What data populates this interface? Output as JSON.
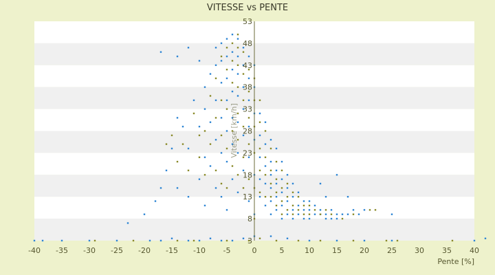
{
  "chart_data": {
    "type": "scatter",
    "title": "VITESSE vs PENTE",
    "xlabel": "Pente [%]",
    "ylabel": "Vitesse [km/h]",
    "xlim": [
      -40,
      40
    ],
    "ylim": [
      3,
      53
    ],
    "x_ticks": [
      "-40",
      "-35",
      "-30",
      "-25",
      "-20",
      "-15",
      "-10",
      "-5",
      "0",
      "5",
      "10",
      "15",
      "20",
      "25",
      "30",
      "35",
      "40"
    ],
    "y_ticks": [
      "53",
      "48",
      "43",
      "38",
      "33",
      "28",
      "23",
      "18",
      "13",
      "8",
      "3"
    ],
    "grid": "horizontal-bands",
    "legend": "none",
    "colors": {
      "series_blue": "#2f86d4",
      "series_olive": "#8a8a2a",
      "band_light": "#ffffff",
      "band_dark": "#f0f0f0",
      "axis": "#6b6b3a"
    },
    "series": [
      {
        "color": "series_blue",
        "points": [
          [
            -40,
            3
          ],
          [
            -38.5,
            3
          ],
          [
            -35,
            3
          ],
          [
            -30,
            3
          ],
          [
            -25,
            3
          ],
          [
            -19,
            3
          ],
          [
            -17,
            3
          ],
          [
            -15,
            3.5
          ],
          [
            -12,
            3
          ],
          [
            -10,
            3
          ],
          [
            -8,
            3.5
          ],
          [
            -6,
            3
          ],
          [
            -4,
            3
          ],
          [
            -2,
            3.5
          ],
          [
            0,
            4
          ],
          [
            3,
            4
          ],
          [
            6,
            3.5
          ],
          [
            10,
            3
          ],
          [
            15,
            3
          ],
          [
            20,
            3
          ],
          [
            25,
            3
          ],
          [
            40,
            3
          ],
          [
            42,
            3.5
          ],
          [
            -23,
            7
          ],
          [
            -20,
            9
          ],
          [
            -18,
            12
          ],
          [
            -17,
            15
          ],
          [
            -16,
            19
          ],
          [
            -15,
            24
          ],
          [
            -14,
            31
          ],
          [
            -14,
            15
          ],
          [
            -13,
            29
          ],
          [
            -12,
            24
          ],
          [
            -12,
            13
          ],
          [
            -11,
            35
          ],
          [
            -10,
            29
          ],
          [
            -10,
            17
          ],
          [
            -9,
            33
          ],
          [
            -9,
            22
          ],
          [
            -9,
            11
          ],
          [
            -17,
            46
          ],
          [
            -14,
            45
          ],
          [
            -12,
            47
          ],
          [
            -10,
            44
          ],
          [
            -9,
            38
          ],
          [
            -8,
            41
          ],
          [
            -8,
            30
          ],
          [
            -8,
            20
          ],
          [
            -7,
            47
          ],
          [
            -7,
            43
          ],
          [
            -7,
            35
          ],
          [
            -7,
            26
          ],
          [
            -7,
            15
          ],
          [
            -6,
            48
          ],
          [
            -6,
            44
          ],
          [
            -6,
            39
          ],
          [
            -6,
            31
          ],
          [
            -6,
            23
          ],
          [
            -6,
            13
          ],
          [
            -5,
            49
          ],
          [
            -5,
            45
          ],
          [
            -5,
            40
          ],
          [
            -5,
            35
          ],
          [
            -5,
            28
          ],
          [
            -5,
            21
          ],
          [
            -5,
            10
          ],
          [
            -4,
            50
          ],
          [
            -4,
            46
          ],
          [
            -4,
            42
          ],
          [
            -4,
            37
          ],
          [
            -4,
            31
          ],
          [
            -4,
            25
          ],
          [
            -4,
            17
          ],
          [
            -3,
            49
          ],
          [
            -3,
            45
          ],
          [
            -3,
            41
          ],
          [
            -3,
            36
          ],
          [
            -3,
            30
          ],
          [
            -3,
            23
          ],
          [
            -3,
            14
          ],
          [
            -2,
            47
          ],
          [
            -2,
            43
          ],
          [
            -2,
            38
          ],
          [
            -2,
            33
          ],
          [
            -2,
            27
          ],
          [
            -2,
            19
          ],
          [
            -1,
            45
          ],
          [
            -1,
            40
          ],
          [
            -1,
            35
          ],
          [
            -1,
            29
          ],
          [
            -1,
            22
          ],
          [
            -1,
            12
          ],
          [
            0,
            43
          ],
          [
            0,
            38
          ],
          [
            0,
            32
          ],
          [
            0,
            26
          ],
          [
            0,
            18
          ],
          [
            0,
            9
          ],
          [
            1,
            32
          ],
          [
            1,
            27
          ],
          [
            1,
            22
          ],
          [
            1,
            17
          ],
          [
            1,
            13
          ],
          [
            2,
            30
          ],
          [
            2,
            25
          ],
          [
            2,
            20
          ],
          [
            2,
            16
          ],
          [
            2,
            11
          ],
          [
            3,
            26
          ],
          [
            3,
            21
          ],
          [
            3,
            18
          ],
          [
            3,
            15
          ],
          [
            3,
            12
          ],
          [
            3,
            9
          ],
          [
            4,
            24
          ],
          [
            4,
            19
          ],
          [
            4,
            16
          ],
          [
            4,
            13
          ],
          [
            4,
            10
          ],
          [
            5,
            21
          ],
          [
            5,
            17
          ],
          [
            5,
            14
          ],
          [
            5,
            11
          ],
          [
            5,
            8
          ],
          [
            6,
            18
          ],
          [
            6,
            15
          ],
          [
            6,
            12
          ],
          [
            6,
            9
          ],
          [
            7,
            16
          ],
          [
            7,
            13
          ],
          [
            7,
            10
          ],
          [
            7,
            8
          ],
          [
            8,
            14
          ],
          [
            8,
            11
          ],
          [
            8,
            9
          ],
          [
            9,
            12
          ],
          [
            9,
            10
          ],
          [
            9,
            8
          ],
          [
            10,
            12
          ],
          [
            10,
            10
          ],
          [
            10,
            8
          ],
          [
            11,
            11
          ],
          [
            11,
            9
          ],
          [
            12,
            10
          ],
          [
            12,
            9
          ],
          [
            13,
            9
          ],
          [
            13,
            8
          ],
          [
            14,
            10
          ],
          [
            14,
            8
          ],
          [
            15,
            9
          ],
          [
            15,
            8
          ],
          [
            16,
            9
          ],
          [
            17,
            9
          ],
          [
            18,
            10
          ],
          [
            19,
            9
          ],
          [
            20,
            10
          ],
          [
            25,
            9
          ],
          [
            12,
            16
          ],
          [
            13,
            13
          ],
          [
            15,
            18
          ],
          [
            17,
            13
          ]
        ]
      },
      {
        "color": "series_olive",
        "points": [
          [
            -29,
            3
          ],
          [
            -22,
            3
          ],
          [
            -14,
            3
          ],
          [
            -11,
            3
          ],
          [
            -5,
            3
          ],
          [
            -1,
            3
          ],
          [
            1,
            3.5
          ],
          [
            4,
            3
          ],
          [
            8,
            3
          ],
          [
            12,
            3
          ],
          [
            18,
            3
          ],
          [
            24,
            3
          ],
          [
            26,
            3
          ],
          [
            36,
            3
          ],
          [
            -16,
            25
          ],
          [
            -15,
            27
          ],
          [
            -14,
            21
          ],
          [
            -13,
            25
          ],
          [
            -12,
            19
          ],
          [
            -11,
            32
          ],
          [
            -10,
            27
          ],
          [
            -10,
            22
          ],
          [
            -9,
            28
          ],
          [
            -9,
            18
          ],
          [
            -8,
            36
          ],
          [
            -8,
            25
          ],
          [
            -7,
            40
          ],
          [
            -7,
            31
          ],
          [
            -7,
            19
          ],
          [
            -6,
            45
          ],
          [
            -6,
            35
          ],
          [
            -6,
            27
          ],
          [
            -6,
            16
          ],
          [
            -5,
            47
          ],
          [
            -5,
            42
          ],
          [
            -5,
            33
          ],
          [
            -5,
            24
          ],
          [
            -5,
            15
          ],
          [
            -4,
            48
          ],
          [
            -4,
            44
          ],
          [
            -4,
            39
          ],
          [
            -4,
            28
          ],
          [
            -4,
            20
          ],
          [
            -3,
            50
          ],
          [
            -3,
            47
          ],
          [
            -3,
            43
          ],
          [
            -3,
            38
          ],
          [
            -3,
            32
          ],
          [
            -3,
            26
          ],
          [
            -3,
            18
          ],
          [
            -2,
            46
          ],
          [
            -2,
            41
          ],
          [
            -2,
            35
          ],
          [
            -2,
            29
          ],
          [
            -2,
            22
          ],
          [
            -2,
            15
          ],
          [
            -1,
            42
          ],
          [
            -1,
            37
          ],
          [
            -1,
            31
          ],
          [
            -1,
            25
          ],
          [
            -1,
            17
          ],
          [
            0,
            40
          ],
          [
            0,
            35
          ],
          [
            0,
            29
          ],
          [
            0,
            23
          ],
          [
            0,
            15
          ],
          [
            0,
            8
          ],
          [
            1,
            35
          ],
          [
            1,
            30
          ],
          [
            1,
            24
          ],
          [
            1,
            19
          ],
          [
            1,
            14
          ],
          [
            2,
            28
          ],
          [
            2,
            22
          ],
          [
            2,
            18
          ],
          [
            2,
            13
          ],
          [
            3,
            24
          ],
          [
            3,
            19
          ],
          [
            3,
            16
          ],
          [
            3,
            13
          ],
          [
            4,
            21
          ],
          [
            4,
            17
          ],
          [
            4,
            14
          ],
          [
            4,
            11
          ],
          [
            5,
            19
          ],
          [
            5,
            15
          ],
          [
            5,
            12
          ],
          [
            5,
            9
          ],
          [
            6,
            16
          ],
          [
            6,
            13
          ],
          [
            6,
            10
          ],
          [
            7,
            14
          ],
          [
            7,
            11
          ],
          [
            7,
            9
          ],
          [
            8,
            13
          ],
          [
            8,
            10
          ],
          [
            9,
            11
          ],
          [
            9,
            9
          ],
          [
            10,
            11
          ],
          [
            10,
            9
          ],
          [
            11,
            10
          ],
          [
            12,
            9
          ],
          [
            13,
            10
          ],
          [
            14,
            9
          ],
          [
            16,
            8
          ],
          [
            18,
            9
          ],
          [
            21,
            10
          ],
          [
            22,
            10
          ]
        ]
      }
    ]
  }
}
